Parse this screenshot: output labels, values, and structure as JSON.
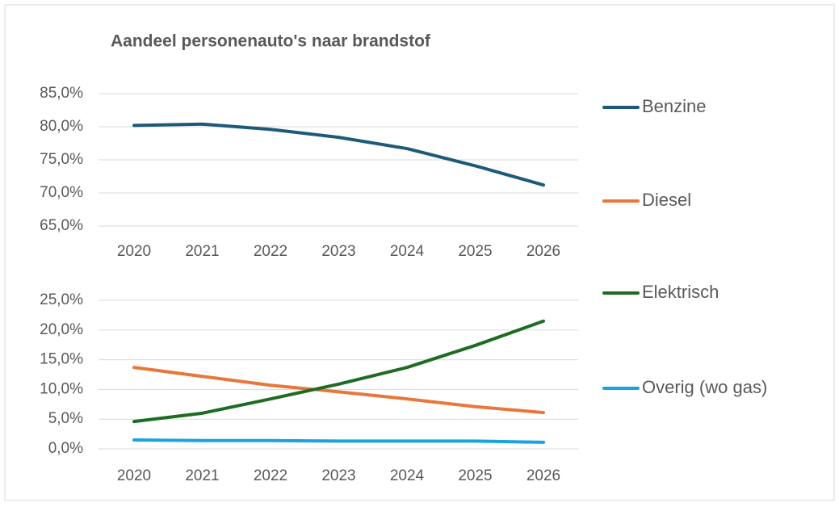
{
  "chart_data": [
    {
      "type": "line",
      "title": "Aandeel personenauto's naar brandstof",
      "categories": [
        "2020",
        "2021",
        "2022",
        "2023",
        "2024",
        "2025",
        "2026"
      ],
      "series": [
        {
          "name": "Benzine",
          "color": "#1d5a7a",
          "values": [
            80.2,
            80.4,
            79.6,
            78.4,
            76.7,
            74.1,
            71.2
          ]
        }
      ],
      "ylim": [
        65,
        85
      ],
      "yticks": [
        {
          "value": 65,
          "label": "65,0%"
        },
        {
          "value": 70,
          "label": "70,0%"
        },
        {
          "value": 75,
          "label": "75,0%"
        },
        {
          "value": 80,
          "label": "80,0%"
        },
        {
          "value": 85,
          "label": "85,0%"
        }
      ],
      "grid": true
    },
    {
      "type": "line",
      "categories": [
        "2020",
        "2021",
        "2022",
        "2023",
        "2024",
        "2025",
        "2026"
      ],
      "series": [
        {
          "name": "Diesel",
          "color": "#e8773a",
          "values": [
            13.7,
            12.2,
            10.7,
            9.6,
            8.4,
            7.1,
            6.1
          ]
        },
        {
          "name": "Elektrisch",
          "color": "#1e6b23",
          "values": [
            4.6,
            6.0,
            8.4,
            10.9,
            13.7,
            17.4,
            21.5
          ]
        },
        {
          "name": "Overig (wo gas)",
          "color": "#1aa3dc",
          "values": [
            1.5,
            1.4,
            1.4,
            1.3,
            1.3,
            1.3,
            1.1
          ]
        }
      ],
      "ylim": [
        0,
        25
      ],
      "yticks": [
        {
          "value": 0,
          "label": "0,0%"
        },
        {
          "value": 5,
          "label": "5,0%"
        },
        {
          "value": 10,
          "label": "10,0%"
        },
        {
          "value": 15,
          "label": "15,0%"
        },
        {
          "value": 20,
          "label": "20,0%"
        },
        {
          "value": 25,
          "label": "25,0%"
        }
      ],
      "grid": true
    }
  ]
}
